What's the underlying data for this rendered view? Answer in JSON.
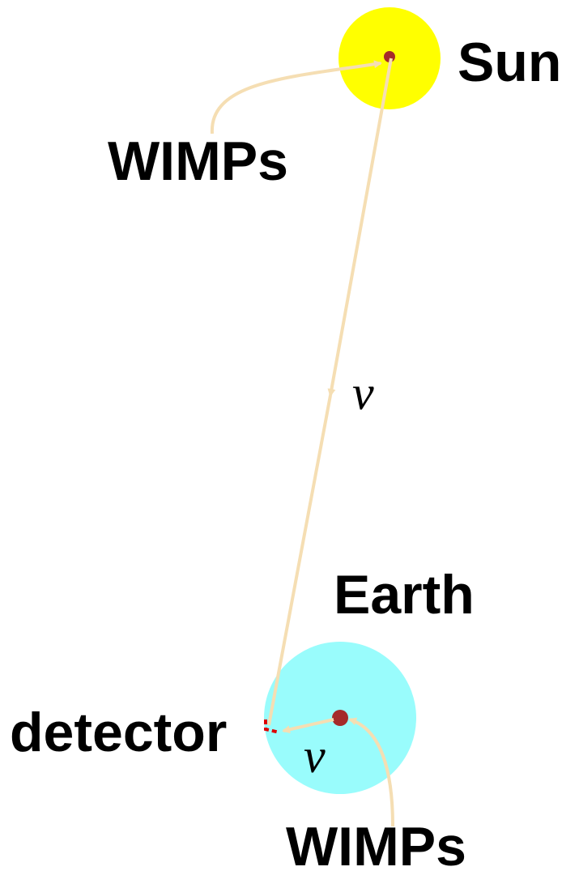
{
  "labels": {
    "sun": "Sun",
    "wimps_sun": "WIMPs",
    "nu_sun": "ν",
    "earth": "Earth",
    "detector": "detector",
    "nu_earth": "ν",
    "wimps_earth": "WIMPs"
  }
}
